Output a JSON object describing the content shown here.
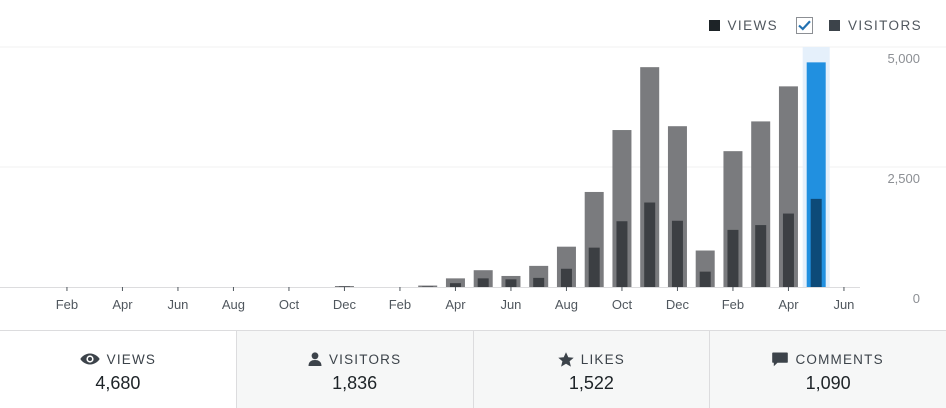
{
  "legend": {
    "views_label": "VIEWS",
    "visitors_label": "VISITORS",
    "visitors_checked": true,
    "views_color": "#1d2327",
    "visitors_color": "#3c434a"
  },
  "colors": {
    "views_bar": "#7a7b7e",
    "visitors_bar": "#3c3f43",
    "highlight_views": "#2190e0",
    "highlight_visitors": "#0d4a78",
    "highlight_bg": "#e5f0fb",
    "grid": "#f0f0f1",
    "accent": "#2271b1"
  },
  "chart_data": {
    "type": "bar",
    "categories": [
      "2016-01",
      "2016-02",
      "2016-03",
      "2016-04",
      "2016-05",
      "2016-06",
      "2016-07",
      "2016-08",
      "2016-09",
      "2016-10",
      "2016-11",
      "2016-12",
      "2017-01",
      "2017-02",
      "2017-03",
      "2017-04",
      "2017-05",
      "2017-06",
      "2017-07",
      "2017-08",
      "2017-09",
      "2017-10",
      "2017-11",
      "2017-12",
      "2018-01",
      "2018-02",
      "2018-03",
      "2018-04",
      "2018-05",
      "2018-06"
    ],
    "x_tick_labels": [
      "Feb",
      "Apr",
      "Jun",
      "Aug",
      "Oct",
      "Dec",
      "Feb",
      "Apr",
      "Jun",
      "Aug",
      "Oct",
      "Dec",
      "Feb",
      "Apr",
      "Jun"
    ],
    "series": [
      {
        "name": "VIEWS",
        "values": [
          0,
          0,
          0,
          0,
          0,
          0,
          0,
          0,
          0,
          0,
          0,
          20,
          0,
          0,
          30,
          180,
          350,
          230,
          440,
          840,
          1980,
          3270,
          4580,
          3350,
          760,
          2830,
          3450,
          4180,
          4680,
          null
        ]
      },
      {
        "name": "VISITORS",
        "values": [
          0,
          0,
          0,
          0,
          0,
          0,
          0,
          0,
          0,
          0,
          0,
          10,
          0,
          0,
          10,
          80,
          180,
          160,
          190,
          380,
          820,
          1370,
          1760,
          1380,
          320,
          1190,
          1290,
          1530,
          1836,
          null
        ]
      }
    ],
    "highlight_index": 28,
    "y_ticks": [
      "5,000",
      "2,500",
      "0"
    ],
    "ylim": [
      0,
      5000
    ]
  },
  "stats": [
    {
      "label": "VIEWS",
      "value": "4,680"
    },
    {
      "label": "VISITORS",
      "value": "1,836"
    },
    {
      "label": "LIKES",
      "value": "1,522"
    },
    {
      "label": "COMMENTS",
      "value": "1,090"
    }
  ]
}
